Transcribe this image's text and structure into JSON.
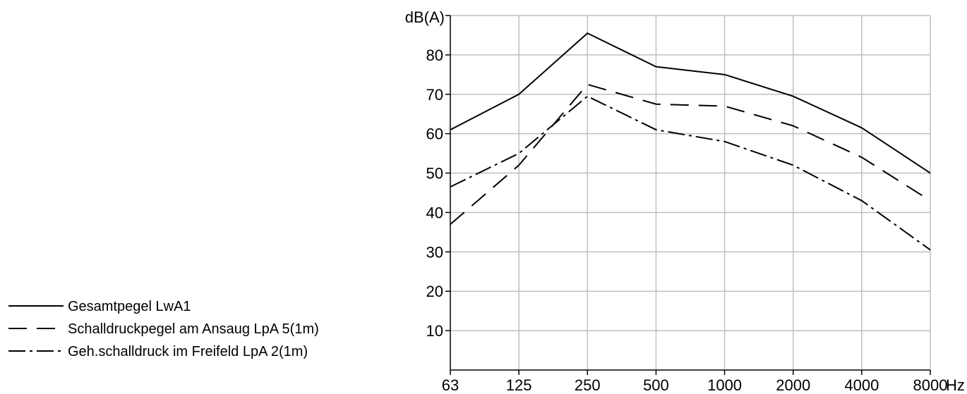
{
  "chart_data": {
    "type": "line",
    "ylabel": "dB(A)",
    "xunit": "Hz",
    "categories": [
      "63",
      "125",
      "250",
      "500",
      "1000",
      "2000",
      "4000",
      "8000"
    ],
    "yticks": [
      10,
      20,
      30,
      40,
      50,
      60,
      70,
      80
    ],
    "ylim": [
      0,
      90
    ],
    "grid": true,
    "legend_position": "bottom-left",
    "series": [
      {
        "name": "Gesamtpegel LwA1",
        "style": "solid",
        "values": [
          61,
          70,
          85.5,
          77,
          75,
          69.5,
          61.5,
          50
        ]
      },
      {
        "name": "Schalldruckpegel am Ansaug LpA 5(1m)",
        "style": "dashed",
        "values": [
          37,
          52,
          72.5,
          67.5,
          67,
          62,
          54,
          43
        ]
      },
      {
        "name": "Geh.schalldruck im Freifeld LpA 2(1m)",
        "style": "dashdot",
        "values": [
          46.5,
          55,
          69.5,
          61,
          58,
          52,
          43,
          30.5
        ]
      }
    ]
  }
}
